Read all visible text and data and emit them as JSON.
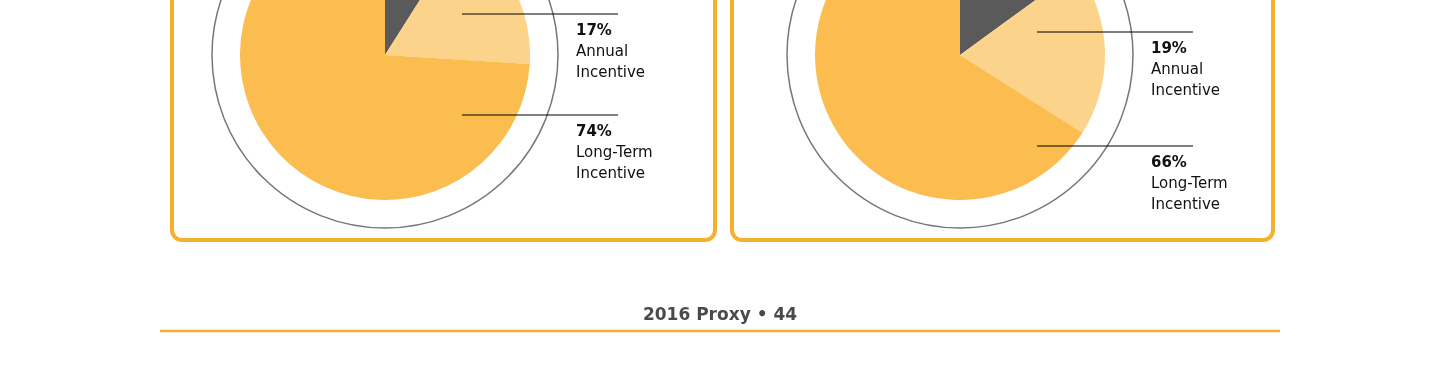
{
  "chart_data": [
    {
      "type": "pie",
      "categories": [
        null,
        "Annual Incentive",
        "Long-Term Incentive"
      ],
      "values": [
        9,
        17,
        74
      ],
      "colors": [
        "#5a5a5a",
        "#fcd38b",
        "#fbbd4f"
      ],
      "value_labels": [
        null,
        "17%",
        "74%"
      ],
      "annotations": [
        "2016 Proxy • 44"
      ]
    },
    {
      "type": "pie",
      "categories": [
        null,
        "Annual Incentive",
        "Long-Term Incentive"
      ],
      "values": [
        15,
        19,
        66
      ],
      "colors": [
        "#5a5a5a",
        "#fcd38b",
        "#fbbd4f"
      ],
      "value_labels": [
        null,
        "19%",
        "66%"
      ]
    }
  ]
}
